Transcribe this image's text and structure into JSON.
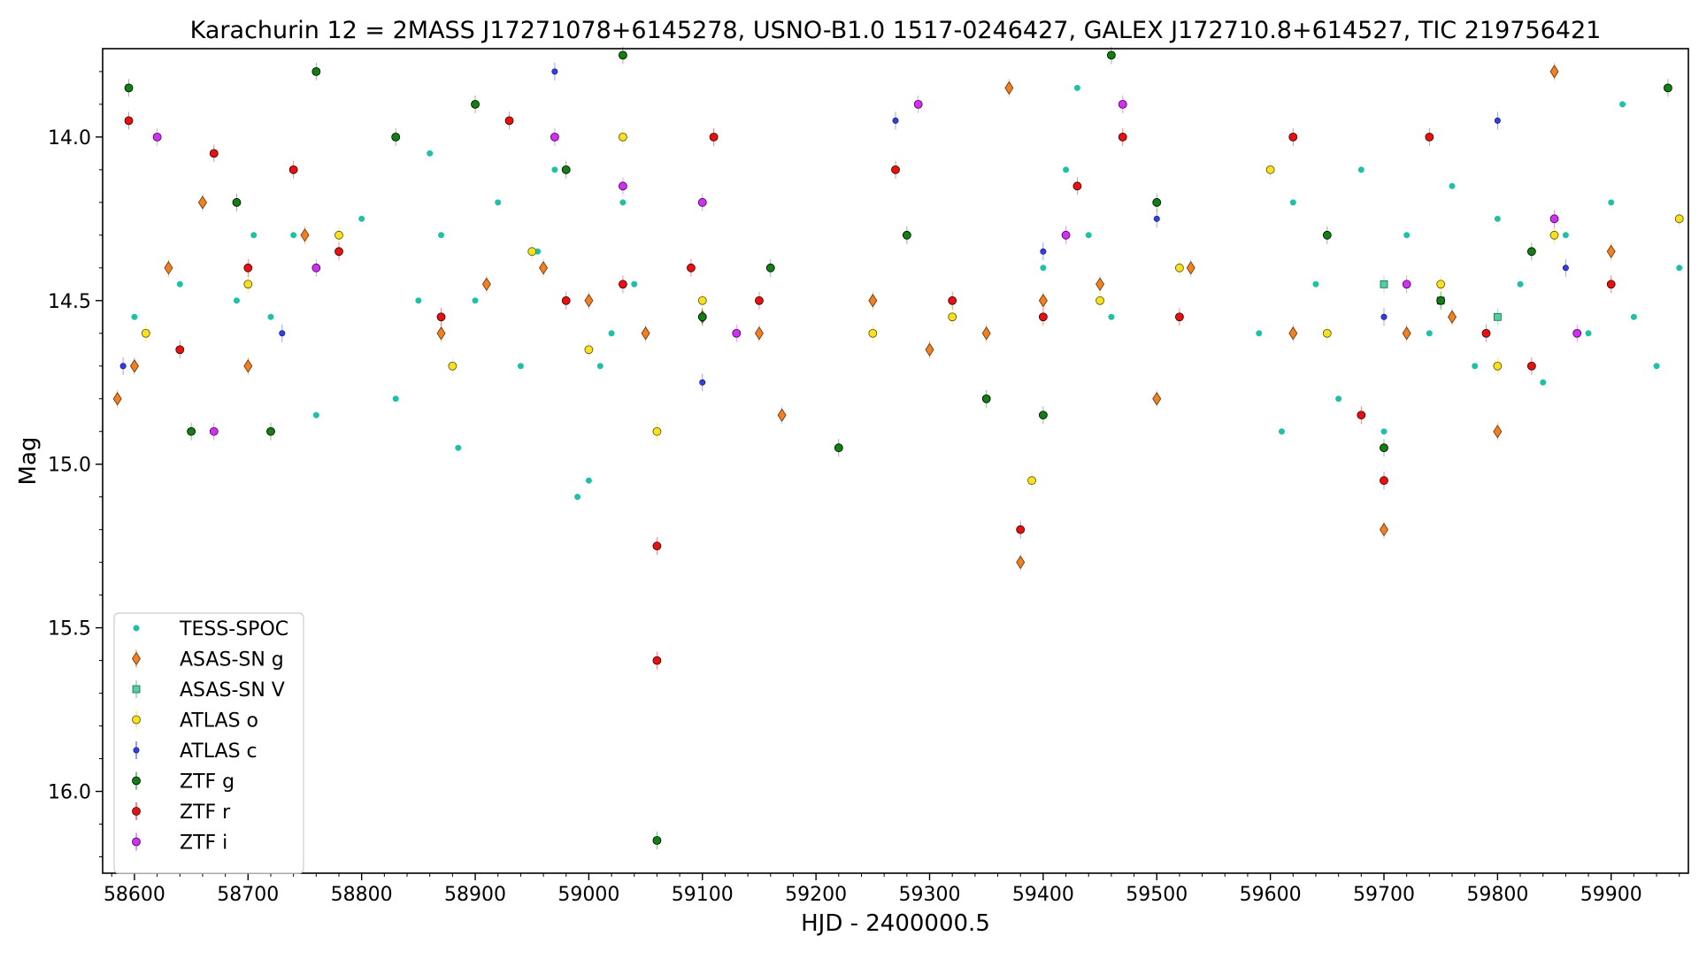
{
  "chart_data": {
    "type": "scatter",
    "title": "Karachurin 12 = 2MASS J17271078+6145278, USNO-B1.0 1517-0246427, GALEX J172710.8+614527, TIC 219756421",
    "xlabel": "HJD - 2400000.5",
    "ylabel": "Mag",
    "xlim": [
      58572,
      59968
    ],
    "ylim": [
      16.25,
      13.73
    ],
    "y_inverted": true,
    "grid": false,
    "legend_position": "lower-left",
    "x_ticks": [
      {
        "value": 58600,
        "label": "58600"
      },
      {
        "value": 58700,
        "label": "58700"
      },
      {
        "value": 58800,
        "label": "58800"
      },
      {
        "value": 58900,
        "label": "58900"
      },
      {
        "value": 59000,
        "label": "59000"
      },
      {
        "value": 59100,
        "label": "59100"
      },
      {
        "value": 59200,
        "label": "59200"
      },
      {
        "value": 59300,
        "label": "59300"
      },
      {
        "value": 59400,
        "label": "59400"
      },
      {
        "value": 59500,
        "label": "59500"
      },
      {
        "value": 59600,
        "label": "59600"
      },
      {
        "value": 59700,
        "label": "59700"
      },
      {
        "value": 59800,
        "label": "59800"
      },
      {
        "value": 59900,
        "label": "59900"
      }
    ],
    "y_ticks": [
      {
        "value": 14.0,
        "label": "14.0"
      },
      {
        "value": 14.5,
        "label": "14.5"
      },
      {
        "value": 15.0,
        "label": "15.0"
      },
      {
        "value": 15.5,
        "label": "15.5"
      },
      {
        "value": 16.0,
        "label": "16.0"
      }
    ],
    "series": [
      {
        "name": "TESS-SPOC",
        "marker": "circle-small",
        "color": "#20c0a8",
        "edge": "#20c0a8",
        "points": [
          [
            58600,
            14.55
          ],
          [
            58640,
            14.45
          ],
          [
            58690,
            14.5
          ],
          [
            58705,
            14.3
          ],
          [
            58720,
            14.55
          ],
          [
            58740,
            14.3
          ],
          [
            58760,
            14.85
          ],
          [
            58780,
            14.35
          ],
          [
            58800,
            14.25
          ],
          [
            58830,
            14.8
          ],
          [
            58850,
            14.5
          ],
          [
            58860,
            14.05
          ],
          [
            58870,
            14.3
          ],
          [
            58885,
            14.95
          ],
          [
            58900,
            14.5
          ],
          [
            58920,
            14.2
          ],
          [
            58940,
            14.7
          ],
          [
            58955,
            14.35
          ],
          [
            58970,
            14.1
          ],
          [
            58990,
            15.1
          ],
          [
            59000,
            15.05
          ],
          [
            59010,
            14.7
          ],
          [
            59020,
            14.6
          ],
          [
            59030,
            14.2
          ],
          [
            59040,
            14.45
          ],
          [
            59400,
            14.4
          ],
          [
            59420,
            14.1
          ],
          [
            59430,
            13.85
          ],
          [
            59440,
            14.3
          ],
          [
            59460,
            14.55
          ],
          [
            59590,
            14.6
          ],
          [
            59610,
            14.9
          ],
          [
            59620,
            14.2
          ],
          [
            59640,
            14.45
          ],
          [
            59660,
            14.8
          ],
          [
            59680,
            14.1
          ],
          [
            59700,
            14.9
          ],
          [
            59720,
            14.3
          ],
          [
            59740,
            14.6
          ],
          [
            59760,
            14.15
          ],
          [
            59780,
            14.7
          ],
          [
            59800,
            14.25
          ],
          [
            59820,
            14.45
          ],
          [
            59840,
            14.75
          ],
          [
            59860,
            14.3
          ],
          [
            59880,
            14.6
          ],
          [
            59900,
            14.2
          ],
          [
            59910,
            13.9
          ],
          [
            59920,
            14.55
          ],
          [
            59940,
            14.7
          ],
          [
            59960,
            14.4
          ]
        ]
      },
      {
        "name": "ASAS-SN g",
        "marker": "diamond",
        "color": "#f08020",
        "edge": "#603010",
        "points": [
          [
            58585,
            14.8
          ],
          [
            58600,
            14.7
          ],
          [
            58630,
            14.4
          ],
          [
            58660,
            14.2
          ],
          [
            58700,
            14.7
          ],
          [
            58750,
            14.3
          ],
          [
            58870,
            14.6
          ],
          [
            58910,
            14.45
          ],
          [
            58960,
            14.4
          ],
          [
            59000,
            14.5
          ],
          [
            59050,
            14.6
          ],
          [
            59100,
            14.55
          ],
          [
            59150,
            14.6
          ],
          [
            59170,
            14.85
          ],
          [
            59250,
            14.5
          ],
          [
            59300,
            14.65
          ],
          [
            59350,
            14.6
          ],
          [
            59370,
            13.85
          ],
          [
            59380,
            15.3
          ],
          [
            59400,
            14.5
          ],
          [
            59450,
            14.45
          ],
          [
            59500,
            14.8
          ],
          [
            59530,
            14.4
          ],
          [
            59620,
            14.6
          ],
          [
            59700,
            15.2
          ],
          [
            59720,
            14.6
          ],
          [
            59760,
            14.55
          ],
          [
            59800,
            14.9
          ],
          [
            59850,
            13.8
          ],
          [
            59900,
            14.35
          ]
        ]
      },
      {
        "name": "ASAS-SN V",
        "marker": "square",
        "color": "#50d0a0",
        "edge": "#206040",
        "points": [
          [
            59700,
            14.45
          ],
          [
            59750,
            14.5
          ],
          [
            59800,
            14.55
          ]
        ]
      },
      {
        "name": "ATLAS o",
        "marker": "circle",
        "color": "#f8e020",
        "edge": "#505000",
        "points": [
          [
            58610,
            14.6
          ],
          [
            58700,
            14.45
          ],
          [
            58780,
            14.3
          ],
          [
            58880,
            14.7
          ],
          [
            58950,
            14.35
          ],
          [
            59000,
            14.65
          ],
          [
            59030,
            14.0
          ],
          [
            59060,
            14.9
          ],
          [
            59100,
            14.5
          ],
          [
            59250,
            14.6
          ],
          [
            59320,
            14.55
          ],
          [
            59390,
            15.05
          ],
          [
            59450,
            14.5
          ],
          [
            59520,
            14.4
          ],
          [
            59600,
            14.1
          ],
          [
            59650,
            14.6
          ],
          [
            59750,
            14.45
          ],
          [
            59800,
            14.7
          ],
          [
            59850,
            14.3
          ],
          [
            59960,
            14.25
          ]
        ]
      },
      {
        "name": "ATLAS c",
        "marker": "circle-small",
        "color": "#3040e0",
        "edge": "#101060",
        "points": [
          [
            58590,
            14.7
          ],
          [
            58730,
            14.6
          ],
          [
            58970,
            13.8
          ],
          [
            59100,
            14.75
          ],
          [
            59270,
            13.95
          ],
          [
            59400,
            14.35
          ],
          [
            59500,
            14.25
          ],
          [
            59700,
            14.55
          ],
          [
            59800,
            13.95
          ],
          [
            59860,
            14.4
          ]
        ]
      },
      {
        "name": "ZTF g",
        "marker": "circle",
        "color": "#108010",
        "edge": "#000000",
        "points": [
          [
            58595,
            13.85
          ],
          [
            58650,
            14.9
          ],
          [
            58690,
            14.2
          ],
          [
            58720,
            14.9
          ],
          [
            58760,
            13.8
          ],
          [
            58830,
            14.0
          ],
          [
            58900,
            13.9
          ],
          [
            58980,
            14.1
          ],
          [
            59030,
            13.75
          ],
          [
            59060,
            16.15
          ],
          [
            59100,
            14.55
          ],
          [
            59160,
            14.4
          ],
          [
            59220,
            14.95
          ],
          [
            59280,
            14.3
          ],
          [
            59350,
            14.8
          ],
          [
            59400,
            14.85
          ],
          [
            59460,
            13.75
          ],
          [
            59500,
            14.2
          ],
          [
            59650,
            14.3
          ],
          [
            59700,
            14.95
          ],
          [
            59750,
            14.5
          ],
          [
            59830,
            14.35
          ],
          [
            59950,
            13.85
          ]
        ]
      },
      {
        "name": "ZTF r",
        "marker": "circle",
        "color": "#e81010",
        "edge": "#300000",
        "points": [
          [
            58595,
            13.95
          ],
          [
            58640,
            14.65
          ],
          [
            58670,
            14.05
          ],
          [
            58700,
            14.4
          ],
          [
            58740,
            14.1
          ],
          [
            58780,
            14.35
          ],
          [
            58870,
            14.55
          ],
          [
            58930,
            13.95
          ],
          [
            58980,
            14.5
          ],
          [
            59030,
            14.45
          ],
          [
            59060,
            15.6
          ],
          [
            59060,
            15.25
          ],
          [
            59090,
            14.4
          ],
          [
            59110,
            14.0
          ],
          [
            59150,
            14.5
          ],
          [
            59270,
            14.1
          ],
          [
            59320,
            14.5
          ],
          [
            59380,
            15.2
          ],
          [
            59400,
            14.55
          ],
          [
            59430,
            14.15
          ],
          [
            59470,
            14.0
          ],
          [
            59520,
            14.55
          ],
          [
            59620,
            14.0
          ],
          [
            59680,
            14.85
          ],
          [
            59700,
            15.05
          ],
          [
            59740,
            14.0
          ],
          [
            59790,
            14.6
          ],
          [
            59830,
            14.7
          ],
          [
            59900,
            14.45
          ]
        ]
      },
      {
        "name": "ZTF i",
        "marker": "circle",
        "color": "#d030f0",
        "edge": "#400050",
        "points": [
          [
            58620,
            14.0
          ],
          [
            58670,
            14.9
          ],
          [
            58760,
            14.4
          ],
          [
            58970,
            14.0
          ],
          [
            59030,
            14.15
          ],
          [
            59100,
            14.2
          ],
          [
            59130,
            14.6
          ],
          [
            59290,
            13.9
          ],
          [
            59420,
            14.3
          ],
          [
            59470,
            13.9
          ],
          [
            59720,
            14.45
          ],
          [
            59850,
            14.25
          ],
          [
            59870,
            14.6
          ]
        ]
      }
    ]
  }
}
